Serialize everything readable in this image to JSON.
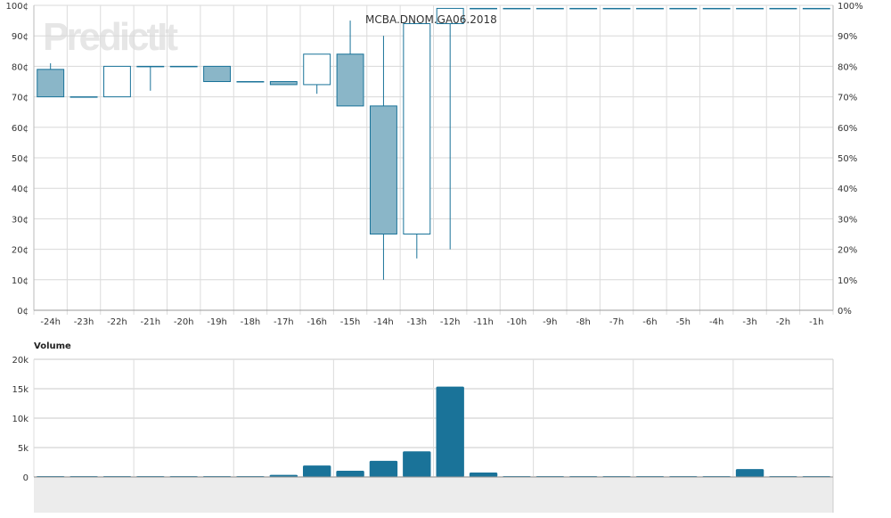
{
  "watermark": "PredictIt",
  "chart_data": [
    {
      "type": "candlestick",
      "title": "MCBA.DNOM.GA06.2018",
      "categories": [
        "-24h",
        "-23h",
        "-22h",
        "-21h",
        "-20h",
        "-19h",
        "-18h",
        "-17h",
        "-16h",
        "-15h",
        "-14h",
        "-13h",
        "-12h",
        "-11h",
        "-10h",
        "-9h",
        "-8h",
        "-7h",
        "-6h",
        "-5h",
        "-4h",
        "-3h",
        "-2h",
        "-1h"
      ],
      "open": [
        79,
        70,
        70,
        80,
        80,
        80,
        75,
        75,
        74,
        84,
        67,
        25,
        94,
        99,
        99,
        99,
        99,
        99,
        99,
        99,
        99,
        99,
        99,
        99
      ],
      "high": [
        81,
        70,
        80,
        80,
        80,
        80,
        75,
        75,
        84,
        95,
        90,
        94,
        99,
        99,
        99,
        99,
        99,
        99,
        99,
        99,
        99,
        99,
        99,
        99
      ],
      "low": [
        70,
        70,
        70,
        72,
        80,
        75,
        75,
        74,
        71,
        67,
        10,
        17,
        20,
        99,
        99,
        99,
        99,
        99,
        99,
        99,
        99,
        99,
        99,
        99
      ],
      "close": [
        70,
        70,
        80,
        80,
        80,
        75,
        75,
        74,
        84,
        67,
        25,
        94,
        99,
        99,
        99,
        99,
        99,
        99,
        99,
        99,
        99,
        99,
        99,
        99
      ],
      "ylim": [
        0,
        100
      ],
      "yticks_left": [
        "0¢",
        "10¢",
        "20¢",
        "30¢",
        "40¢",
        "50¢",
        "60¢",
        "70¢",
        "80¢",
        "90¢",
        "100¢"
      ],
      "yticks_right": [
        "0%",
        "10%",
        "20%",
        "30%",
        "40%",
        "50%",
        "60%",
        "70%",
        "80%",
        "90%",
        "100%"
      ],
      "grid": true,
      "colors": {
        "stroke": "#1a7399",
        "fill": "#8ab6c8"
      }
    },
    {
      "type": "bar",
      "title": "Volume",
      "categories": [
        "-24h",
        "-23h",
        "-22h",
        "-21h",
        "-20h",
        "-19h",
        "-18h",
        "-17h",
        "-16h",
        "-15h",
        "-14h",
        "-13h",
        "-12h",
        "-11h",
        "-10h",
        "-9h",
        "-8h",
        "-7h",
        "-6h",
        "-5h",
        "-4h",
        "-3h",
        "-2h",
        "-1h"
      ],
      "values": [
        0,
        0,
        0,
        0,
        0,
        0,
        0,
        200,
        1800,
        900,
        2600,
        4200,
        15200,
        600,
        0,
        0,
        0,
        0,
        0,
        0,
        0,
        1200,
        0,
        0
      ],
      "ylim": [
        0,
        20000
      ],
      "yticks": [
        "0",
        "5k",
        "10k",
        "15k",
        "20k"
      ],
      "grid": true,
      "colors": {
        "bar": "#1a7399"
      }
    }
  ]
}
